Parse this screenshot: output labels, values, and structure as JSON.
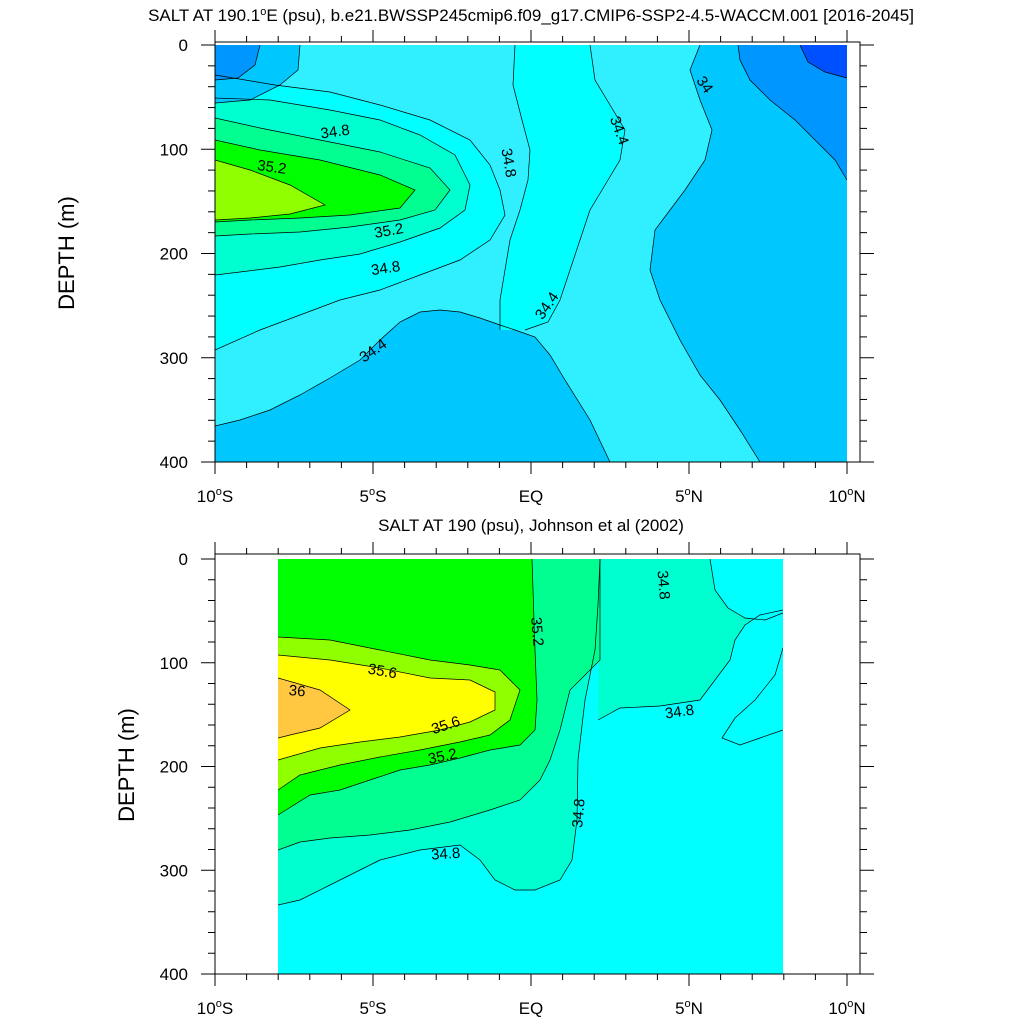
{
  "panels": [
    {
      "title_main": "SALT AT 190.1",
      "title_deg": "o",
      "title_rest": "E (psu), b.e21.BWSSP245cmip6.f09_g17.CMIP6-SSP2-4.5-WACCM.001 [2016-2045]"
    },
    {
      "title_main": "SALT AT 190 (psu), Johnson et al (2002)",
      "title_deg": "",
      "title_rest": ""
    }
  ],
  "chart_data": [
    {
      "type": "heatmap",
      "subtype": "filled-contour",
      "ylabel": "DEPTH (m)",
      "xlim": [
        -10,
        10
      ],
      "ylim": [
        400,
        0
      ],
      "x_ticks": [
        {
          "value": -10,
          "num": "10",
          "sup": "o",
          "hemi": "S"
        },
        {
          "value": -5,
          "num": "5",
          "sup": "o",
          "hemi": "S"
        },
        {
          "value": 0,
          "num": "EQ",
          "sup": "",
          "hemi": ""
        },
        {
          "value": 5,
          "num": "5",
          "sup": "o",
          "hemi": "N"
        },
        {
          "value": 10,
          "num": "10",
          "sup": "o",
          "hemi": "N"
        }
      ],
      "y_ticks": [
        0,
        100,
        200,
        300,
        400
      ],
      "contour_interval": 0.2,
      "contour_labels": [
        {
          "text": "34.8",
          "x": -6.2,
          "depth": 83,
          "angle": -8
        },
        {
          "text": "35.2",
          "x": -8.2,
          "depth": 117,
          "angle": 8
        },
        {
          "text": "35.2",
          "x": -4.5,
          "depth": 178,
          "angle": -10
        },
        {
          "text": "34.8",
          "x": -4.6,
          "depth": 214,
          "angle": -8
        },
        {
          "text": "34.8",
          "x": -0.7,
          "depth": 113,
          "angle": 80
        },
        {
          "text": "34.4",
          "x": 2.8,
          "depth": 82,
          "angle": 70
        },
        {
          "text": "34",
          "x": 5.5,
          "depth": 38,
          "angle": 55
        },
        {
          "text": "34.4",
          "x": 0.5,
          "depth": 250,
          "angle": -55
        },
        {
          "text": "34.4",
          "x": -5.0,
          "depth": 293,
          "angle": -35
        }
      ]
    },
    {
      "type": "heatmap",
      "subtype": "filled-contour",
      "ylabel": "DEPTH (m)",
      "xlim": [
        -10,
        10
      ],
      "ylim": [
        400,
        0
      ],
      "data_extent_x": [
        -8,
        8
      ],
      "x_ticks": [
        {
          "value": -10,
          "num": "10",
          "sup": "o",
          "hemi": "S"
        },
        {
          "value": -5,
          "num": "5",
          "sup": "o",
          "hemi": "S"
        },
        {
          "value": 0,
          "num": "EQ",
          "sup": "",
          "hemi": ""
        },
        {
          "value": 5,
          "num": "5",
          "sup": "o",
          "hemi": "N"
        },
        {
          "value": 10,
          "num": "10",
          "sup": "o",
          "hemi": "N"
        }
      ],
      "y_ticks": [
        0,
        100,
        200,
        300,
        400
      ],
      "contour_interval": 0.2,
      "contour_labels": [
        {
          "text": "36",
          "x": -7.4,
          "depth": 127,
          "angle": 5
        },
        {
          "text": "35.6",
          "x": -4.7,
          "depth": 108,
          "angle": 10
        },
        {
          "text": "35.6",
          "x": -2.7,
          "depth": 160,
          "angle": -18
        },
        {
          "text": "35.2",
          "x": -2.8,
          "depth": 190,
          "angle": -12
        },
        {
          "text": "35.2",
          "x": 0.2,
          "depth": 70,
          "angle": 85
        },
        {
          "text": "34.8",
          "x": 4.2,
          "depth": 25,
          "angle": 85
        },
        {
          "text": "34.8",
          "x": 4.7,
          "depth": 147,
          "angle": -8
        },
        {
          "text": "34.8",
          "x": 1.5,
          "depth": 245,
          "angle": -85
        },
        {
          "text": "34.8",
          "x": -2.7,
          "depth": 284,
          "angle": -4
        }
      ]
    }
  ],
  "colors": {
    "c33_8": "#0050ff",
    "c34_0": "#0096ff",
    "c34_2": "#00c8ff",
    "c34_4": "#30f0ff",
    "c34_6": "#00ffff",
    "c34_8": "#00ffd0",
    "c35_0": "#00ff90",
    "c35_2": "#00ff00",
    "c35_4": "#90ff00",
    "c35_6": "#ffff00",
    "c35_8": "#ffc840"
  }
}
